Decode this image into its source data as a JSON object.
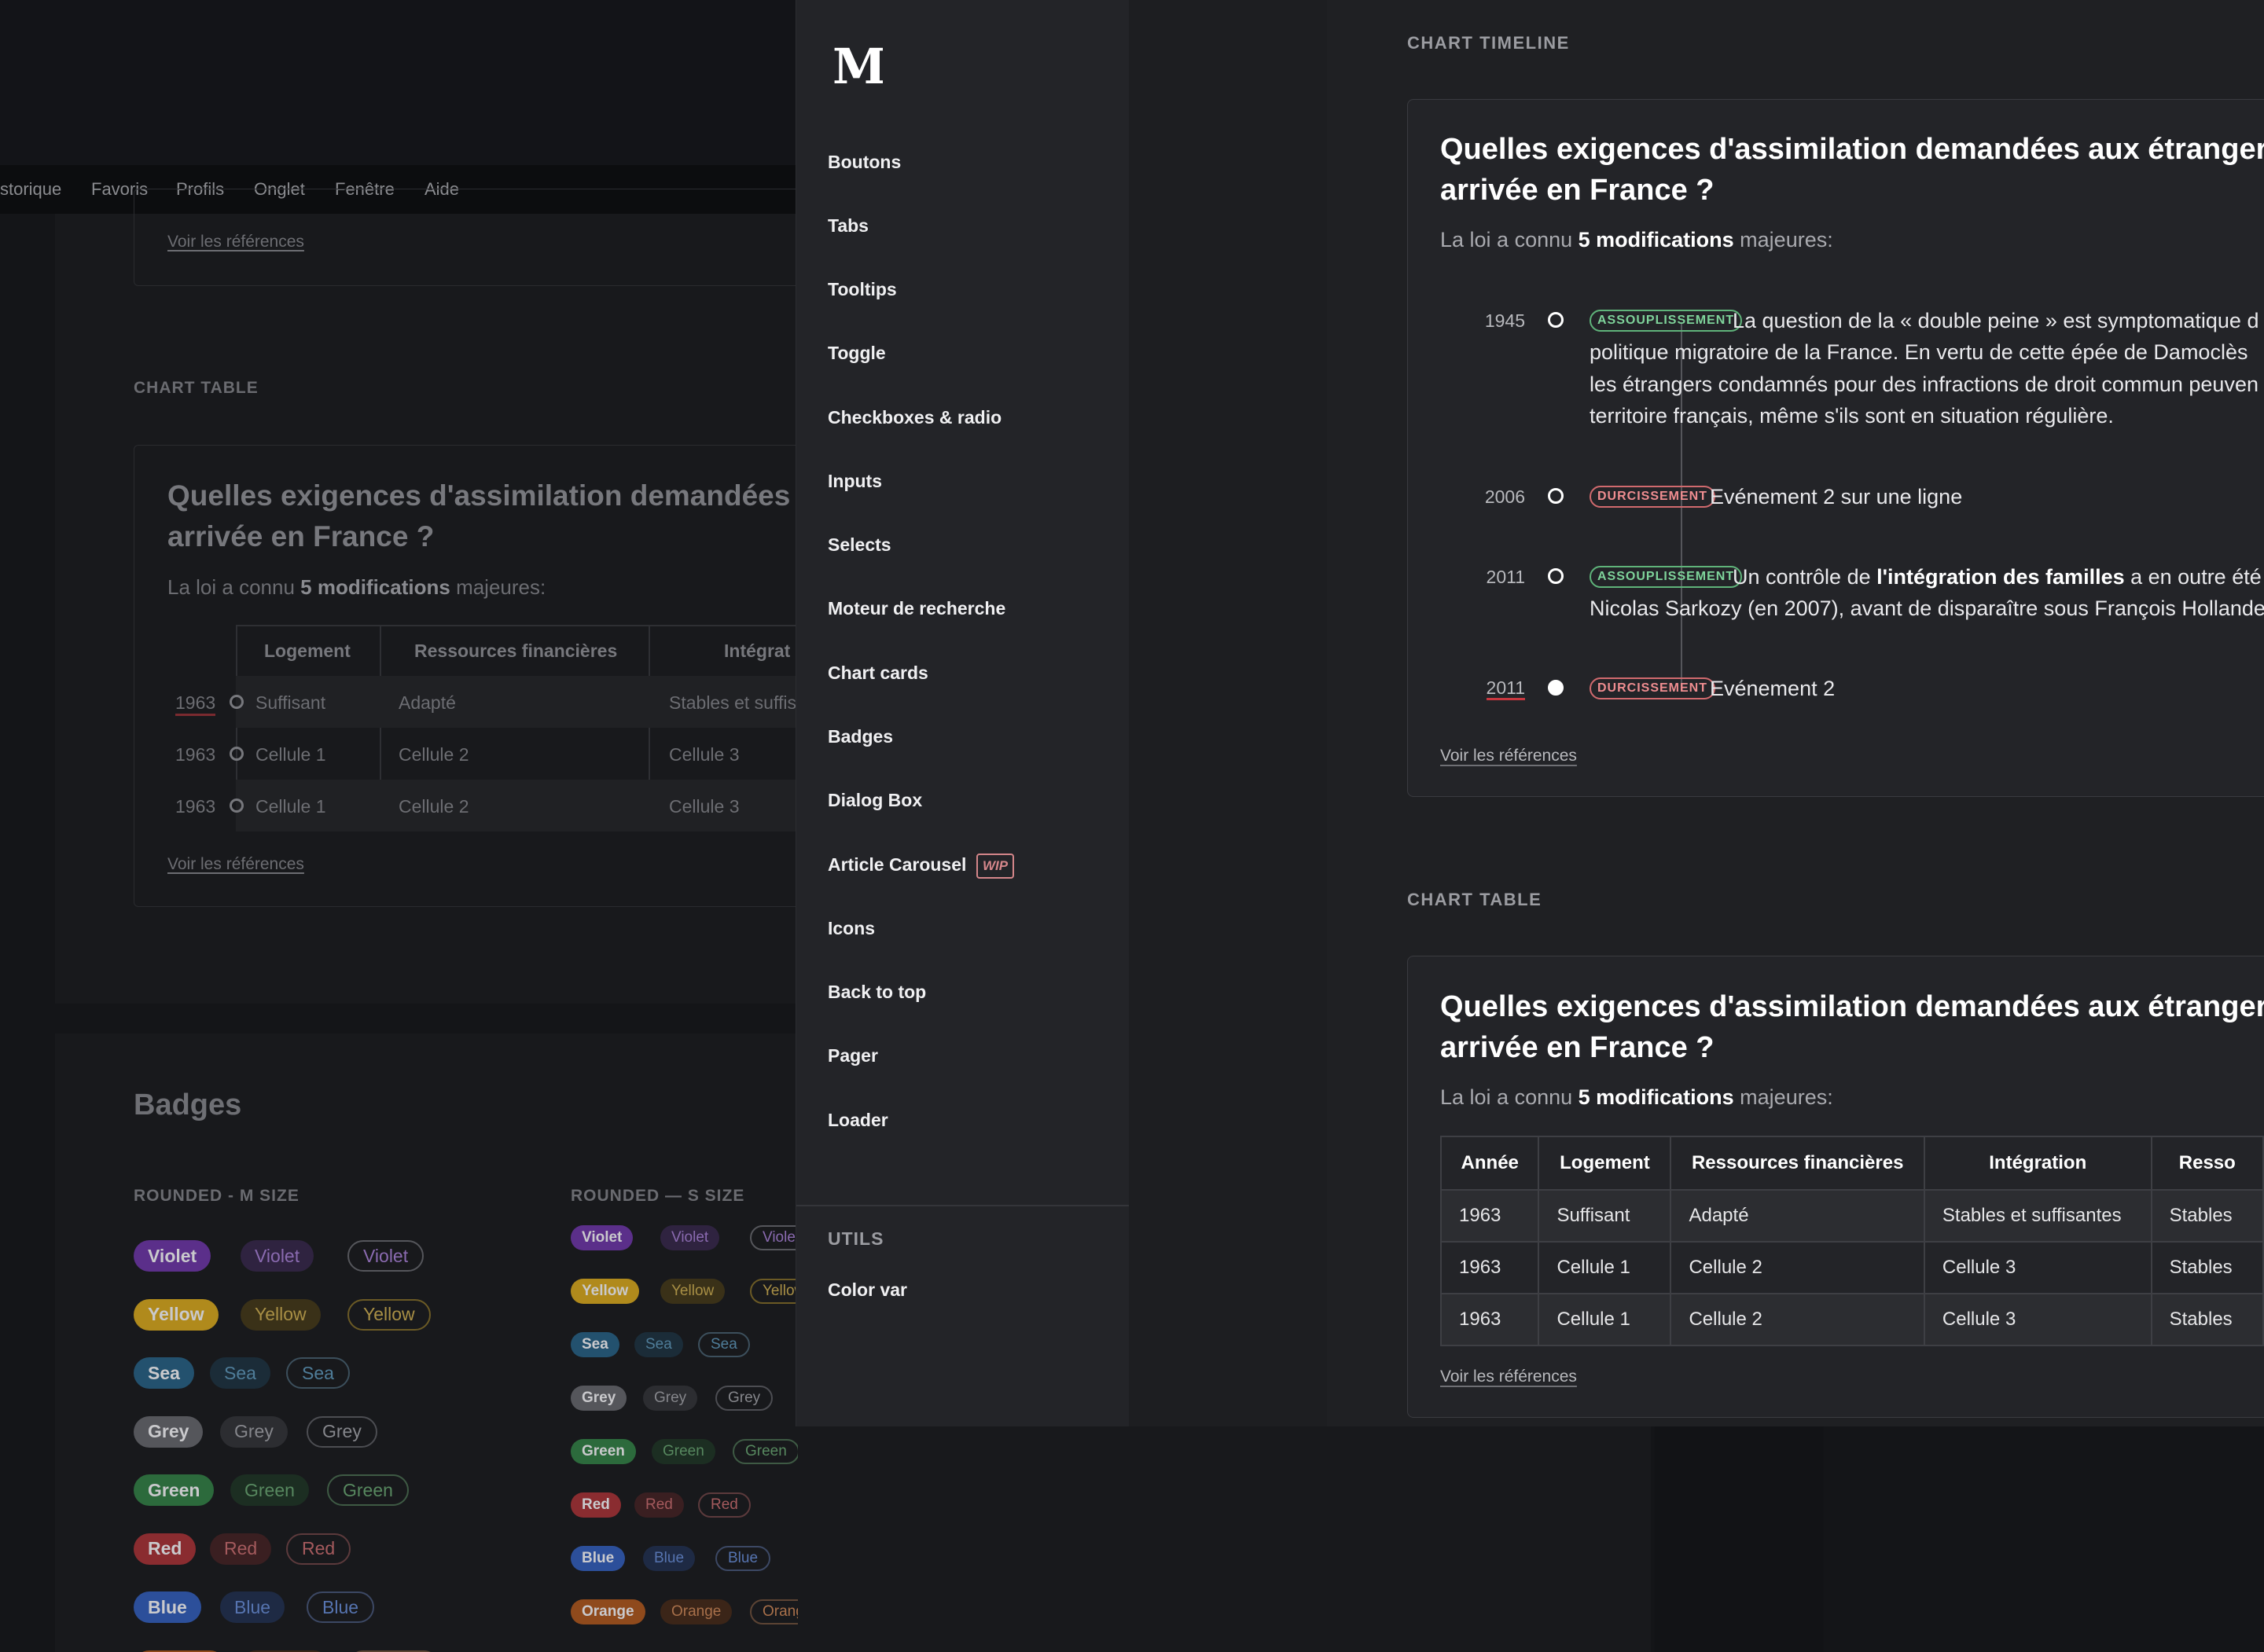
{
  "background": {
    "menubar": [
      "storique",
      "Favoris",
      "Profils",
      "Onglet",
      "Fenêtre",
      "Aide"
    ],
    "ref_link": "Voir les références",
    "chart_table_label": "CHART TABLE",
    "question_line1": "Quelles exigences d'assimilation demandées à",
    "question_line2": "arrivée en France ?",
    "subtitle_pre": "La loi a connu ",
    "subtitle_bold": "5 modifications",
    "subtitle_post": " majeures:",
    "table_headers": [
      "Logement",
      "Ressources financières",
      "Intégrat"
    ],
    "table_rows": [
      {
        "year": "1963",
        "cells": [
          "Suffisant",
          "Adapté",
          "Stables et suffis"
        ]
      },
      {
        "year": "1963",
        "cells": [
          "Cellule 1",
          "Cellule 2",
          "Cellule 3"
        ]
      },
      {
        "year": "1963",
        "cells": [
          "Cellule 1",
          "Cellule 2",
          "Cellule 3"
        ]
      }
    ],
    "badges_title": "Badges",
    "badges_m_label": "ROUNDED - M SIZE",
    "badges_s_label": "ROUNDED — S SIZE",
    "badge_rows": [
      {
        "name": "Violet",
        "solid": "#5b2f8a",
        "soft": "#2f2340",
        "text": "#8a6ab0",
        "border": "#55565b"
      },
      {
        "name": "Yellow",
        "solid": "#b08a1c",
        "soft": "#3a3118",
        "text": "#a88f45",
        "border": "#6b5a25"
      },
      {
        "name": "Sea",
        "solid": "#23516e",
        "soft": "#1b2c38",
        "text": "#4f7d99",
        "border": "#3c4f5c"
      },
      {
        "name": "Grey",
        "solid": "#55565b",
        "soft": "#2c2d31",
        "text": "#85868b",
        "border": "#4c4d52"
      },
      {
        "name": "Green",
        "solid": "#2c6a3c",
        "soft": "#1c2e22",
        "text": "#57885f",
        "border": "#3e5a44"
      },
      {
        "name": "Red",
        "solid": "#8a2c30",
        "soft": "#3a1f21",
        "text": "#a45a5d",
        "border": "#5c3a3c"
      },
      {
        "name": "Blue",
        "solid": "#2c4f9a",
        "soft": "#1e2a44",
        "text": "#5674b0",
        "border": "#3c4864"
      },
      {
        "name": "Orange",
        "solid": "#8f4a1c",
        "soft": "#3b2518",
        "text": "#a8704a",
        "border": "#5c4434"
      }
    ]
  },
  "sidebar": {
    "logo": "M",
    "items": [
      "Boutons",
      "Tabs",
      "Tooltips",
      "Toggle",
      "Checkboxes & radio",
      "Inputs",
      "Selects",
      "Moteur de recherche",
      "Chart cards",
      "Badges",
      "Dialog Box",
      "Article Carousel",
      "Icons",
      "Back to top",
      "Pager",
      "Loader"
    ],
    "wip_badge": "WIP",
    "utils_label": "UTILS",
    "utils_items": [
      "Color var"
    ]
  },
  "timeline_section": {
    "label": "CHART TIMELINE",
    "title_line1": "Quelles exigences d'assimilation demandées aux étrangers",
    "title_line2": "arrivée en France ?",
    "subtitle_pre": "La loi a connu ",
    "subtitle_bold": "5 modifications",
    "subtitle_post": " majeures:",
    "events": [
      {
        "year": "1945",
        "tag": "ASSOUPLISSEMENT",
        "lines": [
          "La question de la « double peine » est symptomatique d",
          "politique migratoire de la France. En vertu de cette épée de Damoclès",
          "les étrangers condamnés pour des infractions de droit commun peuven",
          "territoire français, même s'ils sont en situation régulière."
        ]
      },
      {
        "year": "2006",
        "tag": "DURCISSEMENT",
        "lines": [
          "Evénement 2 sur une ligne"
        ]
      },
      {
        "year": "2011",
        "tag": "ASSOUPLISSEMENT",
        "line1_pre": "Un contrôle de ",
        "line1_bold": "l'intégration des familles",
        "line1_post": " a en outre été",
        "lines": [
          "Nicolas Sarkozy (en 2007), avant de disparaître sous François Hollande"
        ]
      },
      {
        "year": "2011",
        "tag": "DURCISSEMENT",
        "lines": [
          "Evénement 2"
        ]
      }
    ],
    "ref_link": "Voir les références"
  },
  "table_section": {
    "label": "CHART TABLE",
    "title_line1": "Quelles exigences d'assimilation demandées aux étrangers",
    "title_line2": "arrivée en France ?",
    "subtitle_pre": "La loi a connu ",
    "subtitle_bold": "5 modifications",
    "subtitle_post": " majeures:",
    "headers": [
      "Année",
      "Logement",
      "Ressources financières",
      "Intégration",
      "Resso"
    ],
    "rows": [
      [
        "1963",
        "Suffisant",
        "Adapté",
        "Stables et suffisantes",
        "Stables"
      ],
      [
        "1963",
        "Cellule 1",
        "Cellule 2",
        "Cellule 3",
        "Stables"
      ],
      [
        "1963",
        "Cellule 1",
        "Cellule 2",
        "Cellule 3",
        "Stables"
      ]
    ],
    "ref_link": "Voir les références"
  }
}
